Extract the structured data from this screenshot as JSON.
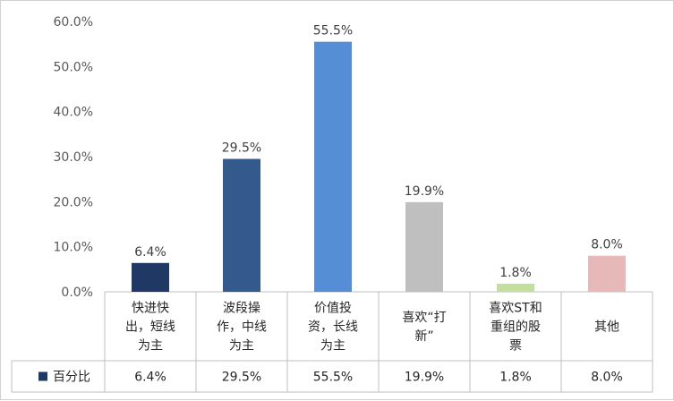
{
  "chart_data": {
    "type": "bar",
    "categories": [
      [
        "快进快",
        "出，短线",
        "为主"
      ],
      [
        "波段操",
        "作，中线",
        "为主"
      ],
      [
        "价值投",
        "资，长线",
        "为主"
      ],
      [
        "喜欢“打",
        "新”"
      ],
      [
        "喜欢ST和",
        "重组的股",
        "票"
      ],
      [
        "其他"
      ]
    ],
    "series": [
      {
        "name": "百分比",
        "values": [
          6.4,
          29.5,
          55.5,
          19.9,
          1.8,
          8.0
        ],
        "labels": [
          "6.4%",
          "29.5%",
          "55.5%",
          "19.9%",
          "1.8%",
          "8.0%"
        ],
        "legend_color": "#1f3864"
      }
    ],
    "bar_colors": [
      "#1f3864",
      "#34598d",
      "#558ed5",
      "#bfbfbf",
      "#c3dfa0",
      "#e6b8b7"
    ],
    "ylim": [
      0,
      60
    ],
    "yticks": [
      "0.0%",
      "10.0%",
      "20.0%",
      "30.0%",
      "40.0%",
      "50.0%",
      "60.0%"
    ],
    "xlabel": "",
    "ylabel": "",
    "grid": false,
    "data_table": true
  }
}
